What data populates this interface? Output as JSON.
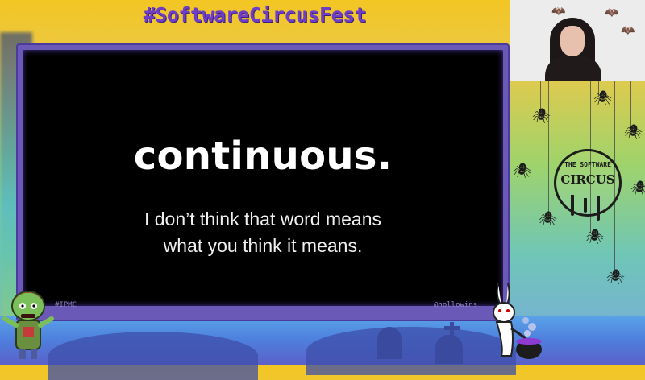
{
  "stream": {
    "event_title": "#SoftwareCircusFest"
  },
  "slide": {
    "heading": "continuous.",
    "subtitle_line1": "I don’t think that word means",
    "subtitle_line2": "what you think it means.",
    "footer_left": "#IPMC",
    "footer_right": "@hollowins"
  },
  "branding": {
    "logo_small": "THE SOFTWARE",
    "logo_main": "CIRCUS"
  },
  "icons": {
    "spider": "spider-icon",
    "bat": "bat-icon"
  },
  "colors": {
    "title": "#6f3ec7",
    "frame": "#6a59b6",
    "slide_bg": "#000000"
  }
}
